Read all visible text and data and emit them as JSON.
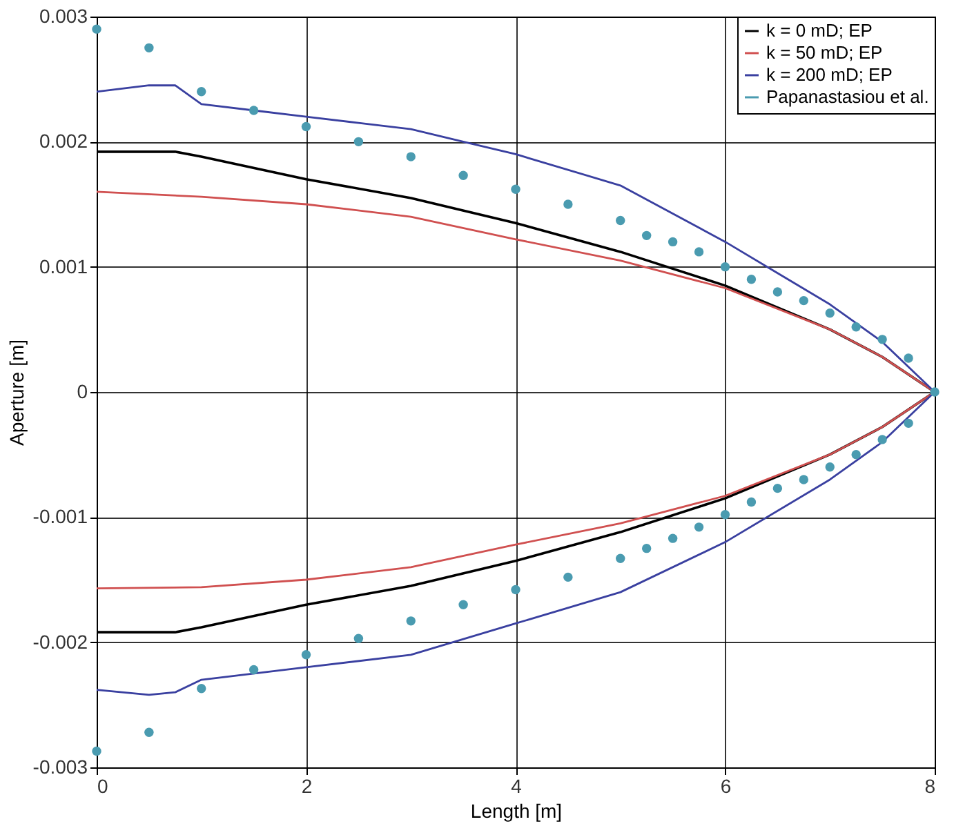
{
  "chart_data": {
    "type": "line",
    "xlabel": "Length [m]",
    "ylabel": "Aperture [m]",
    "xlim": [
      0,
      8
    ],
    "xticks": [
      0,
      2,
      4,
      6,
      8
    ],
    "ylim": [
      -0.003,
      0.003
    ],
    "yticks": [
      -0.003,
      -0.002,
      -0.001,
      0,
      0.001,
      0.002,
      0.003
    ],
    "grid": true,
    "legend": "top right",
    "line_style": "solid",
    "series": [
      {
        "name": "k = 0 mD; EP",
        "color": "#000000",
        "x": [
          0,
          0.75,
          1,
          2,
          3,
          4,
          5,
          6,
          7,
          7.5,
          8,
          7.5,
          7,
          6,
          5,
          4,
          3,
          2,
          1,
          0.75,
          0
        ],
        "values": [
          0.00192,
          0.00192,
          0.00188,
          0.0017,
          0.00155,
          0.00135,
          0.00112,
          0.00085,
          0.0005,
          0.00028,
          0,
          -0.00028,
          -0.0005,
          -0.00085,
          -0.00112,
          -0.00135,
          -0.00155,
          -0.0017,
          -0.00188,
          -0.00192,
          -0.00192
        ]
      },
      {
        "name": "k = 50 mD; EP",
        "color": "#d05050",
        "x": [
          0,
          1,
          2,
          3,
          4,
          5,
          6,
          7,
          7.5,
          8,
          7.5,
          7,
          6,
          5,
          4,
          3,
          2,
          1,
          0
        ],
        "values": [
          0.0016,
          0.00156,
          0.0015,
          0.0014,
          0.00122,
          0.00105,
          0.00083,
          0.0005,
          0.00028,
          0,
          -0.00028,
          -0.0005,
          -0.00083,
          -0.00105,
          -0.00122,
          -0.0014,
          -0.0015,
          -0.00156,
          -0.00157
        ]
      },
      {
        "name": "k = 200 mD; EP",
        "color": "#3a40a0",
        "x": [
          0,
          0.5,
          0.75,
          1,
          1.5,
          2,
          2.5,
          3,
          3.5,
          4,
          5,
          6,
          6.5,
          7,
          7.5,
          8,
          7.5,
          7,
          6,
          5,
          4,
          3,
          2,
          1,
          0.75,
          0.5,
          0
        ],
        "values": [
          0.0024,
          0.00245,
          0.00245,
          0.0023,
          0.00225,
          0.0022,
          0.00215,
          0.0021,
          0.002,
          0.0019,
          0.00165,
          0.0012,
          0.00095,
          0.0007,
          0.0004,
          0,
          -0.0004,
          -0.0007,
          -0.0012,
          -0.0016,
          -0.00185,
          -0.0021,
          -0.0022,
          -0.0023,
          -0.0024,
          -0.00242,
          -0.00238
        ]
      },
      {
        "name": "Papanastasiou et al.",
        "color": "#4a9bb0",
        "type": "scatter",
        "marker": "circle",
        "x": [
          0,
          0.5,
          1,
          1.5,
          2,
          2.5,
          3,
          3.5,
          4,
          4.5,
          5,
          5.25,
          5.5,
          5.75,
          6,
          6.25,
          6.5,
          6.75,
          7,
          7.25,
          7.5,
          7.75,
          8,
          0,
          0.5,
          1,
          1.5,
          2,
          2.5,
          3,
          3.5,
          4,
          4.5,
          5,
          5.25,
          5.5,
          5.75,
          6,
          6.25,
          6.5,
          6.75,
          7,
          7.25,
          7.5,
          7.75
        ],
        "values": [
          0.0029,
          0.00275,
          0.0024,
          0.00225,
          0.00212,
          0.002,
          0.00188,
          0.00173,
          0.00162,
          0.0015,
          0.00137,
          0.00125,
          0.0012,
          0.00112,
          0.001,
          0.0009,
          0.0008,
          0.00073,
          0.00063,
          0.00052,
          0.00042,
          0.00027,
          0,
          -0.00287,
          -0.00272,
          -0.00237,
          -0.00222,
          -0.0021,
          -0.00197,
          -0.00183,
          -0.0017,
          -0.00158,
          -0.00148,
          -0.00133,
          -0.00125,
          -0.00117,
          -0.00108,
          -0.00098,
          -0.00088,
          -0.00077,
          -0.0007,
          -0.0006,
          -0.0005,
          -0.00038,
          -0.00025
        ]
      }
    ]
  }
}
